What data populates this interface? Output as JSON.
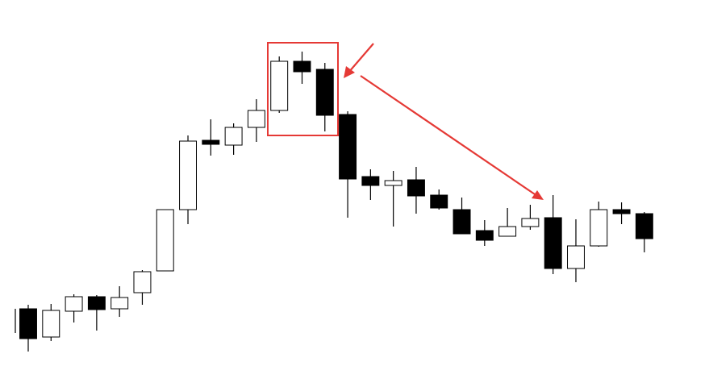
{
  "chart_data": {
    "type": "candlestick",
    "categories": [
      null,
      null,
      null,
      null,
      null,
      null,
      null,
      null,
      null,
      null,
      null,
      null,
      null,
      null,
      null,
      null,
      null,
      null,
      null,
      null,
      null,
      null,
      null,
      null,
      null,
      null,
      null,
      null
    ],
    "open": [
      97,
      62,
      94,
      112,
      97,
      117,
      144,
      220,
      306,
      300,
      322,
      343,
      404,
      394,
      338,
      261,
      250,
      257,
      238,
      220,
      194,
      187,
      199,
      210,
      147,
      175,
      220,
      215
    ],
    "high": [
      102,
      103,
      115,
      114,
      125,
      145,
      220,
      312,
      332,
      327,
      357,
      410,
      416,
      402,
      342,
      270,
      268,
      273,
      245,
      235,
      207,
      222,
      226,
      238,
      208,
      230,
      229,
      217
    ],
    "low": [
      44,
      57,
      80,
      70,
      87,
      102,
      144,
      202,
      287,
      288,
      304,
      340,
      376,
      317,
      210,
      232,
      199,
      215,
      220,
      190,
      175,
      187,
      195,
      140,
      130,
      174,
      202,
      167
    ],
    "close": [
      60,
      95,
      112,
      96,
      111,
      143,
      220,
      305,
      301,
      322,
      343,
      404,
      391,
      337,
      258,
      250,
      256,
      237,
      222,
      190,
      182,
      199,
      209,
      147,
      175,
      220,
      215,
      184
    ],
    "up_color": "#ffffff",
    "down_color": "#000000",
    "ylim": [
      0,
      480
    ]
  }
}
